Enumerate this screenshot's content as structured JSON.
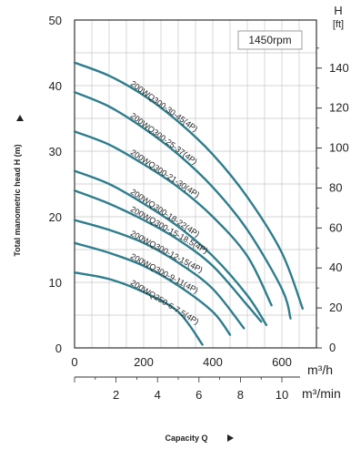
{
  "chart_data": {
    "type": "line",
    "speed_note": "1450rpm",
    "ylabel": "Total manometric head H (m)",
    "xlabel": "Capacity Q",
    "x_unit_primary": "m³/h",
    "x_unit_secondary": "m³/min",
    "y_unit_right_top": "H",
    "y_unit_right_sub": "[ft]",
    "xlim": [
      0,
      700
    ],
    "ylim": [
      0,
      50
    ],
    "x_ticks": [
      0,
      200,
      400,
      600
    ],
    "y_ticks": [
      0,
      10,
      20,
      30,
      40,
      50
    ],
    "ft_ticks": [
      0,
      20,
      40,
      60,
      80,
      100,
      120,
      140
    ],
    "m3min_ticks": [
      2,
      4,
      6,
      8,
      10
    ],
    "curve_color": "#2e7d8c",
    "series": [
      {
        "name": "200WQ300-30-45(4P)",
        "x": [
          0,
          100,
          200,
          300,
          400,
          500,
          600,
          660
        ],
        "y": [
          43.5,
          41.5,
          38.5,
          34.5,
          29.5,
          23.0,
          14.5,
          6.0
        ]
      },
      {
        "name": "200WQ300-25-37(4P)",
        "x": [
          0,
          100,
          200,
          300,
          400,
          500,
          600,
          625
        ],
        "y": [
          39.0,
          36.8,
          33.5,
          29.5,
          24.5,
          18.0,
          9.0,
          4.5
        ]
      },
      {
        "name": "200WQ300-21-30(4P)",
        "x": [
          0,
          100,
          200,
          300,
          400,
          500,
          570
        ],
        "y": [
          33.0,
          31.0,
          28.0,
          24.5,
          20.0,
          14.0,
          6.5
        ]
      },
      {
        "name": "200WQ300-18-22(4P)",
        "x": [
          0,
          100,
          200,
          300,
          400,
          500,
          555
        ],
        "y": [
          27.0,
          25.0,
          22.0,
          18.5,
          14.0,
          8.0,
          3.5
        ]
      },
      {
        "name": "200WQ300-15-18.5(4P)",
        "x": [
          0,
          100,
          200,
          300,
          400,
          500,
          540
        ],
        "y": [
          24.0,
          22.0,
          19.5,
          16.5,
          12.5,
          6.5,
          4.0
        ]
      },
      {
        "name": "200WQ300-12-15(4P)",
        "x": [
          0,
          100,
          200,
          300,
          400,
          490
        ],
        "y": [
          19.5,
          18.0,
          16.0,
          13.0,
          9.0,
          3.0
        ]
      },
      {
        "name": "200WQ300-9-11(4P)",
        "x": [
          0,
          100,
          200,
          300,
          400,
          450
        ],
        "y": [
          16.0,
          14.5,
          12.5,
          9.5,
          5.5,
          2.0
        ]
      },
      {
        "name": "200WQ250-6-7.5(4P)",
        "x": [
          0,
          100,
          200,
          300,
          370
        ],
        "y": [
          11.5,
          10.5,
          8.5,
          5.5,
          0.5
        ]
      }
    ]
  }
}
